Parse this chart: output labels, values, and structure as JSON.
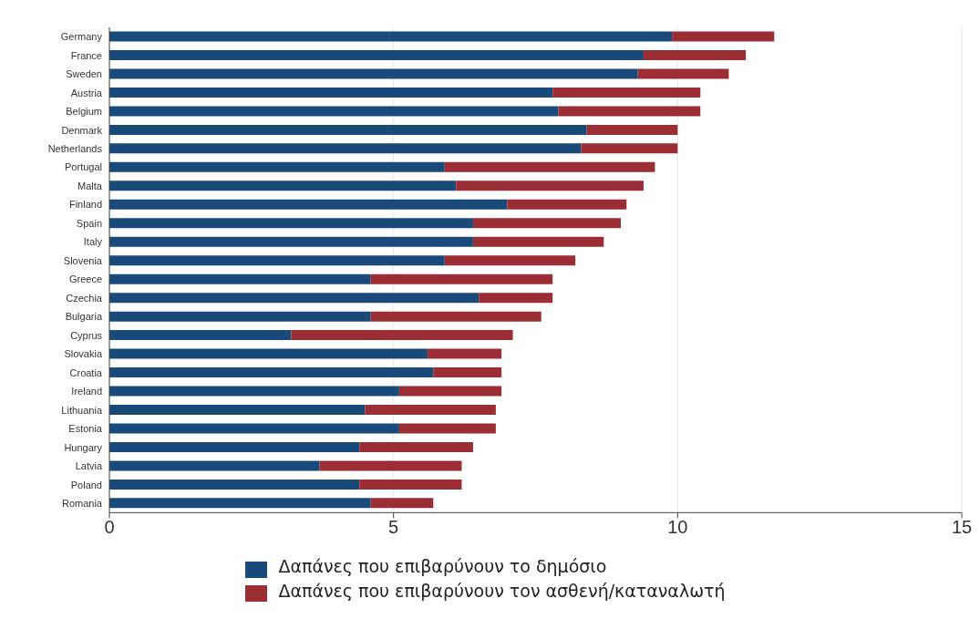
{
  "chart_data": {
    "type": "bar",
    "orientation": "horizontal",
    "stacked": true,
    "categories": [
      "Germany",
      "France",
      "Sweden",
      "Austria",
      "Belgium",
      "Denmark",
      "Netherlands",
      "Portugal",
      "Malta",
      "Finland",
      "Spain",
      "Italy",
      "Slovenia",
      "Greece",
      "Czechia",
      "Bulgaria",
      "Cyprus",
      "Slovakia",
      "Croatia",
      "Ireland",
      "Lithuania",
      "Estonia",
      "Hungary",
      "Latvia",
      "Poland",
      "Romania"
    ],
    "series": [
      {
        "name": "Δαπάνες που επιβαρύνουν το δημόσιο",
        "color": "#1a4a7a",
        "values": [
          9.9,
          9.4,
          9.3,
          7.8,
          7.9,
          8.4,
          8.3,
          5.9,
          6.1,
          7.0,
          6.4,
          6.4,
          5.9,
          4.6,
          6.5,
          4.6,
          3.2,
          5.6,
          5.7,
          5.1,
          4.5,
          5.1,
          4.4,
          3.7,
          4.4,
          4.6
        ]
      },
      {
        "name": "Δαπάνες που επιβαρύνουν τον ασθενή/καταναλωτή",
        "color": "#9b2d35",
        "values": [
          1.8,
          1.8,
          1.6,
          2.6,
          2.5,
          1.6,
          1.7,
          3.7,
          3.3,
          2.1,
          2.6,
          2.3,
          2.3,
          3.2,
          1.3,
          3.0,
          3.9,
          1.3,
          1.2,
          1.8,
          2.3,
          1.7,
          2.0,
          2.5,
          1.8,
          1.1
        ]
      }
    ],
    "xlim": [
      0,
      15
    ],
    "xticks": [
      0,
      5,
      10,
      15
    ],
    "grid": "x",
    "legend": "bottom"
  }
}
